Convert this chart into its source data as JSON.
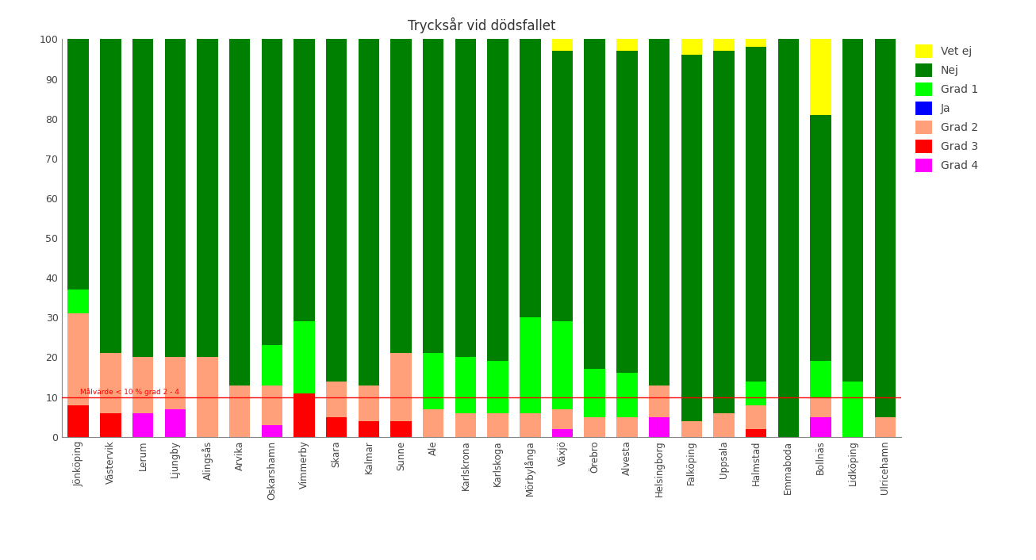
{
  "title": "Trycksår vid dödsfallet",
  "ylabel": "",
  "ylim": [
    0,
    100
  ],
  "yticks": [
    0,
    10,
    20,
    30,
    40,
    50,
    60,
    70,
    80,
    90,
    100
  ],
  "hline_y": 10,
  "hline_color": "#ff0000",
  "hline_label": "Målvärde < 10 % grad 2 - 4",
  "categories": [
    "Jönköping",
    "Västervik",
    "Lerum",
    "Ljungby",
    "Alingsås",
    "Arvika",
    "Oskarshamn",
    "Vimmerby",
    "Skara",
    "Kalmar",
    "Sunne",
    "Ale",
    "Karlskrona",
    "Karlskoga",
    "Mörbylånga",
    "Växjö",
    "Örebro",
    "Alvesta",
    "Helsingborg",
    "Falköping",
    "Uppsala",
    "Halmstad",
    "Emmaboda",
    "Bollnäs",
    "Lidköping",
    "Ulricehamn"
  ],
  "series": {
    "Grad 4": {
      "color": "#ff00ff",
      "values": [
        0,
        0,
        6,
        7,
        0,
        0,
        3,
        0,
        0,
        0,
        0,
        0,
        0,
        0,
        0,
        2,
        0,
        0,
        5,
        0,
        0,
        0,
        0,
        5,
        0,
        0
      ]
    },
    "Grad 3": {
      "color": "#ff0000",
      "values": [
        8,
        6,
        0,
        0,
        0,
        0,
        0,
        11,
        5,
        4,
        4,
        0,
        0,
        0,
        0,
        0,
        0,
        0,
        0,
        0,
        0,
        2,
        0,
        0,
        0,
        0
      ]
    },
    "Grad 2": {
      "color": "#ffa07a",
      "values": [
        23,
        15,
        14,
        13,
        20,
        13,
        10,
        0,
        9,
        9,
        17,
        7,
        6,
        6,
        6,
        5,
        5,
        5,
        8,
        4,
        6,
        6,
        0,
        5,
        0,
        5
      ]
    },
    "Ja": {
      "color": "#0000ff",
      "values": [
        0,
        0,
        0,
        0,
        0,
        0,
        0,
        0,
        0,
        0,
        0,
        0,
        0,
        0,
        0,
        0,
        0,
        0,
        0,
        0,
        0,
        0,
        0,
        0,
        0,
        0
      ]
    },
    "Grad 1": {
      "color": "#00ff00",
      "values": [
        6,
        0,
        0,
        0,
        0,
        0,
        10,
        18,
        0,
        0,
        0,
        14,
        14,
        13,
        24,
        22,
        12,
        11,
        0,
        0,
        0,
        6,
        0,
        9,
        14,
        0
      ]
    },
    "Nej": {
      "color": "#008000",
      "values": [
        63,
        79,
        80,
        80,
        80,
        87,
        77,
        71,
        86,
        87,
        79,
        79,
        80,
        81,
        70,
        68,
        83,
        81,
        87,
        92,
        91,
        84,
        100,
        62,
        86,
        95
      ]
    },
    "Vet ej": {
      "color": "#ffff00",
      "values": [
        0,
        0,
        0,
        0,
        0,
        0,
        0,
        0,
        0,
        0,
        0,
        0,
        0,
        0,
        0,
        3,
        0,
        3,
        0,
        4,
        3,
        2,
        0,
        19,
        0,
        0
      ]
    }
  },
  "legend_order": [
    "Vet ej",
    "Nej",
    "Grad 1",
    "Ja",
    "Grad 2",
    "Grad 3",
    "Grad 4"
  ],
  "background_color": "#ffffff",
  "figsize": [
    13.06,
    7.06
  ],
  "dpi": 100
}
